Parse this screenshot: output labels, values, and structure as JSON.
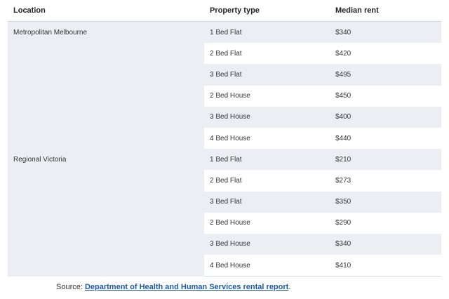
{
  "table": {
    "headers": {
      "location": "Location",
      "property_type": "Property type",
      "median_rent": "Median rent"
    },
    "groups": [
      {
        "location": "Metropolitan Melbourne",
        "rows": [
          {
            "type": "1 Bed Flat",
            "rent": "$340"
          },
          {
            "type": "2 Bed Flat",
            "rent": "$420"
          },
          {
            "type": "3 Bed Flat",
            "rent": "$495"
          },
          {
            "type": "2 Bed House",
            "rent": "$450"
          },
          {
            "type": "3 Bed House",
            "rent": "$400"
          },
          {
            "type": "4 Bed House",
            "rent": "$440"
          }
        ]
      },
      {
        "location": "Regional Victoria",
        "rows": [
          {
            "type": "1 Bed Flat",
            "rent": "$210"
          },
          {
            "type": "2 Bed Flat",
            "rent": "$273"
          },
          {
            "type": "3 Bed Flat",
            "rent": "$350"
          },
          {
            "type": "2 Bed House",
            "rent": "$290"
          },
          {
            "type": "3 Bed House",
            "rent": "$340"
          },
          {
            "type": "4 Bed House",
            "rent": "$410"
          }
        ]
      }
    ]
  },
  "source": {
    "prefix": "Source: ",
    "link_text": "Department of Health and Human Services rental report",
    "suffix": "."
  }
}
